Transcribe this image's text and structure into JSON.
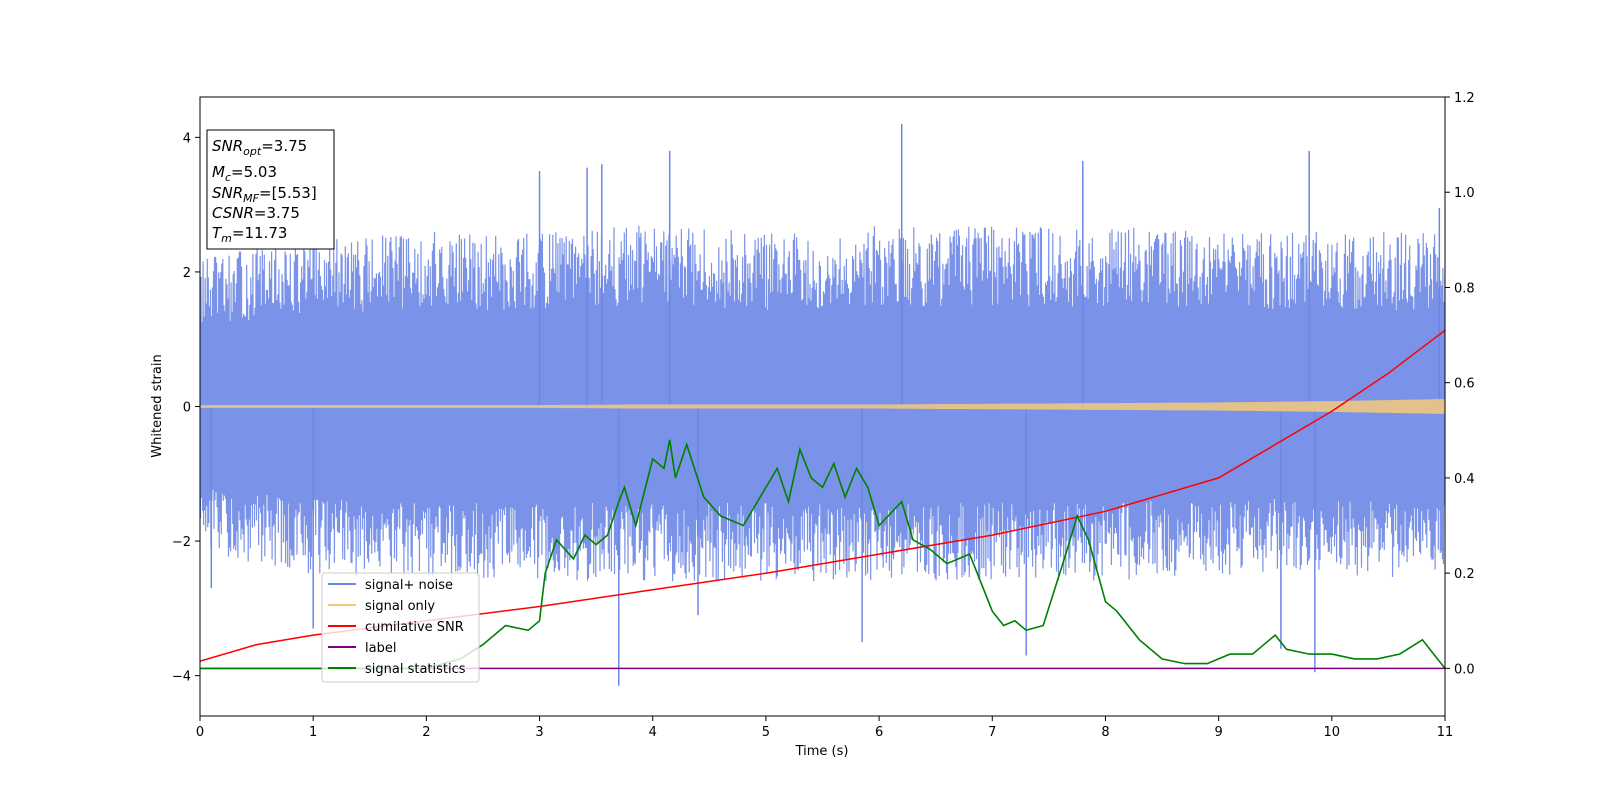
{
  "chart_data": {
    "type": "line",
    "xlabel": "Time (s)",
    "ylabel": "Whitened strain",
    "xlim": [
      0,
      11
    ],
    "ylim": [
      -4.6,
      4.6
    ],
    "y2lim": [
      -0.1,
      1.2
    ],
    "xticks": [
      "0",
      "1",
      "2",
      "3",
      "4",
      "5",
      "6",
      "7",
      "8",
      "9",
      "10",
      "11"
    ],
    "yticks": [
      "−4",
      "−2",
      "0",
      "2",
      "4"
    ],
    "y2ticks": [
      "0.0",
      "0.2",
      "0.4",
      "0.6",
      "0.8",
      "1.0",
      "1.2"
    ],
    "legend_position": "lower-left",
    "grid": false,
    "stats": {
      "snr_opt": "=3.75",
      "mc": "=5.03",
      "snr_mf": "=[5.53]",
      "csnr": "=3.75",
      "tm": "=11.73"
    },
    "series": [
      {
        "name": "signal+ noise",
        "axis": "left",
        "color": "#6b87e6",
        "envelope_hi": [
          2.2,
          2.5,
          2.6,
          2.6,
          2.7,
          2.6,
          2.7,
          2.7,
          2.7,
          2.6,
          2.6,
          2.6
        ],
        "envelope_lo": [
          -2.2,
          -2.5,
          -2.6,
          -2.6,
          -2.6,
          -2.6,
          -2.6,
          -2.6,
          -2.6,
          -2.5,
          -2.5,
          -2.6
        ],
        "spikes": [
          [
            3.0,
            3.5
          ],
          [
            3.42,
            3.55
          ],
          [
            3.55,
            3.6
          ],
          [
            4.15,
            3.8
          ],
          [
            6.2,
            4.2
          ],
          [
            7.8,
            3.65
          ],
          [
            9.8,
            3.8
          ],
          [
            10.95,
            2.95
          ],
          [
            0.1,
            -2.7
          ],
          [
            3.7,
            -4.15
          ],
          [
            7.3,
            -3.7
          ],
          [
            9.55,
            -3.6
          ],
          [
            9.85,
            -3.95
          ],
          [
            1.0,
            -3.3
          ],
          [
            4.4,
            -3.1
          ],
          [
            5.85,
            -3.5
          ]
        ]
      },
      {
        "name": "signal only",
        "axis": "left",
        "color": "#f5c97a",
        "amplitude": [
          0.02,
          0.02,
          0.02,
          0.02,
          0.03,
          0.03,
          0.03,
          0.04,
          0.05,
          0.06,
          0.08,
          0.11
        ]
      },
      {
        "name": "cumilative SNR",
        "axis": "right",
        "color": "#ff0000",
        "x": [
          0,
          0.5,
          1,
          2,
          3,
          4,
          5,
          6,
          7,
          8,
          9,
          10,
          10.5,
          11
        ],
        "values": [
          0.015,
          0.05,
          0.07,
          0.1,
          0.13,
          0.165,
          0.2,
          0.24,
          0.28,
          0.33,
          0.4,
          0.54,
          0.62,
          0.71
        ]
      },
      {
        "name": "label",
        "axis": "right",
        "color": "#800080",
        "x": [
          0,
          11
        ],
        "values": [
          0.0,
          0.0
        ]
      },
      {
        "name": "signal statistics",
        "axis": "right",
        "color": "#008000",
        "x": [
          0,
          1,
          2,
          2.3,
          2.5,
          2.7,
          2.9,
          3.0,
          3.05,
          3.15,
          3.3,
          3.4,
          3.5,
          3.6,
          3.7,
          3.75,
          3.85,
          4.0,
          4.1,
          4.15,
          4.2,
          4.3,
          4.45,
          4.6,
          4.8,
          5.0,
          5.1,
          5.2,
          5.3,
          5.4,
          5.5,
          5.6,
          5.7,
          5.8,
          5.9,
          6.0,
          6.2,
          6.3,
          6.45,
          6.6,
          6.8,
          6.9,
          7.0,
          7.1,
          7.2,
          7.3,
          7.45,
          7.65,
          7.75,
          7.85,
          8.0,
          8.1,
          8.3,
          8.5,
          8.7,
          8.9,
          9.1,
          9.3,
          9.5,
          9.6,
          9.8,
          10.0,
          10.2,
          10.4,
          10.6,
          10.8,
          10.9,
          11.0
        ],
        "values": [
          0.0,
          0.0,
          0.0,
          0.02,
          0.05,
          0.09,
          0.08,
          0.1,
          0.2,
          0.27,
          0.23,
          0.28,
          0.26,
          0.28,
          0.35,
          0.38,
          0.3,
          0.44,
          0.42,
          0.48,
          0.4,
          0.47,
          0.36,
          0.32,
          0.3,
          0.38,
          0.42,
          0.35,
          0.46,
          0.4,
          0.38,
          0.43,
          0.36,
          0.42,
          0.38,
          0.3,
          0.35,
          0.27,
          0.25,
          0.22,
          0.24,
          0.18,
          0.12,
          0.09,
          0.1,
          0.08,
          0.09,
          0.24,
          0.32,
          0.27,
          0.14,
          0.12,
          0.06,
          0.02,
          0.01,
          0.01,
          0.03,
          0.03,
          0.07,
          0.04,
          0.03,
          0.03,
          0.02,
          0.02,
          0.03,
          0.06,
          0.03,
          0.0
        ]
      }
    ]
  }
}
